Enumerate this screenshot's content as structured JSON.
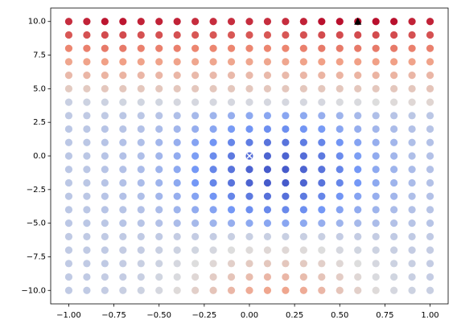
{
  "chart_data": {
    "type": "scatter-grid",
    "colormap": "coolwarm",
    "clim": [
      0,
      100
    ],
    "x": [
      -1,
      -0.9,
      -0.8,
      -0.7,
      -0.6,
      -0.5,
      -0.4,
      -0.3,
      -0.2,
      -0.1,
      0,
      0.1,
      0.2,
      0.3,
      0.4,
      0.5,
      0.6,
      0.7,
      0.8,
      0.9,
      1
    ],
    "y": [
      10,
      9,
      8,
      7,
      6,
      5,
      4,
      3,
      2,
      1,
      0,
      -1,
      -2,
      -3,
      -4,
      -5,
      -6,
      -7,
      -8,
      -9,
      -10
    ],
    "c": [
      [
        93,
        95,
        97,
        97,
        95,
        95,
        95,
        93,
        93,
        93,
        93,
        93,
        93,
        95,
        98,
        98,
        98,
        98,
        98,
        95,
        95
      ],
      [
        86,
        87,
        88,
        88,
        87,
        87,
        87,
        86,
        86,
        86,
        86,
        86,
        86,
        87,
        88,
        88,
        88,
        88,
        88,
        87,
        87
      ],
      [
        78,
        79,
        80,
        80,
        79,
        79,
        79,
        78,
        78,
        78,
        78,
        78,
        78,
        79,
        80,
        80,
        80,
        80,
        80,
        79,
        79
      ],
      [
        70,
        71,
        72,
        72,
        71,
        71,
        71,
        70,
        70,
        70,
        70,
        70,
        70,
        71,
        72,
        72,
        72,
        72,
        72,
        71,
        71
      ],
      [
        63,
        64,
        65,
        65,
        64,
        64,
        64,
        63,
        63,
        63,
        63,
        63,
        63,
        64,
        65,
        65,
        65,
        65,
        65,
        64,
        64
      ],
      [
        57,
        57,
        58,
        58,
        58,
        58,
        58,
        58,
        58,
        58,
        58,
        58,
        58,
        58,
        58,
        58,
        58,
        58,
        58,
        58,
        59
      ],
      [
        45,
        46,
        46,
        47,
        47,
        47,
        48,
        48,
        48,
        48,
        48,
        48,
        48,
        48,
        48,
        49,
        49,
        50,
        51,
        52,
        53
      ],
      [
        43,
        43,
        43,
        42,
        42,
        41,
        39,
        37,
        35,
        33,
        31,
        30,
        30,
        31,
        33,
        35,
        37,
        39,
        41,
        42,
        42
      ],
      [
        42,
        42,
        41,
        41,
        40,
        38,
        36,
        33,
        30,
        26,
        24,
        22,
        22,
        24,
        26,
        30,
        33,
        36,
        38,
        40,
        41
      ],
      [
        42,
        42,
        41,
        40,
        39,
        36,
        33,
        29,
        24,
        19,
        16,
        13,
        13,
        16,
        19,
        24,
        29,
        33,
        36,
        39,
        40
      ],
      [
        42,
        42,
        41,
        40,
        39,
        36,
        32,
        27,
        21,
        15,
        11,
        8,
        8,
        11,
        15,
        21,
        27,
        32,
        36,
        39,
        40
      ],
      [
        42,
        42,
        41,
        40,
        38,
        35,
        31,
        25,
        19,
        13,
        8,
        5,
        5,
        8,
        13,
        19,
        25,
        31,
        35,
        38,
        40
      ],
      [
        42,
        42,
        41,
        40,
        38,
        35,
        31,
        25,
        19,
        13,
        8,
        5,
        5,
        8,
        13,
        19,
        25,
        31,
        35,
        38,
        40
      ],
      [
        42,
        42,
        41,
        40,
        39,
        36,
        33,
        29,
        24,
        19,
        15,
        12,
        12,
        15,
        19,
        24,
        29,
        33,
        36,
        39,
        40
      ],
      [
        42,
        42,
        41,
        41,
        40,
        38,
        35,
        32,
        29,
        25,
        22,
        20,
        20,
        22,
        25,
        29,
        32,
        35,
        38,
        40,
        41
      ],
      [
        42,
        42,
        42,
        41,
        41,
        40,
        38,
        37,
        35,
        33,
        31,
        30,
        30,
        31,
        33,
        35,
        37,
        38,
        40,
        41,
        41
      ],
      [
        43,
        43,
        43,
        43,
        43,
        43,
        44,
        44,
        44,
        45,
        45,
        45,
        45,
        45,
        45,
        44,
        44,
        44,
        43,
        43,
        43
      ],
      [
        43,
        43,
        43,
        44,
        44,
        45,
        46,
        47,
        48,
        50,
        51,
        52,
        52,
        51,
        50,
        48,
        47,
        46,
        45,
        44,
        44
      ],
      [
        43,
        43,
        43,
        44,
        45,
        46,
        48,
        50,
        52,
        55,
        57,
        58,
        58,
        57,
        55,
        52,
        50,
        48,
        46,
        45,
        44
      ],
      [
        43,
        43,
        44,
        44,
        45,
        47,
        49,
        52,
        56,
        59,
        62,
        64,
        64,
        62,
        59,
        56,
        52,
        49,
        47,
        45,
        44
      ],
      [
        43,
        43,
        44,
        45,
        46,
        48,
        51,
        55,
        59,
        64,
        68,
        70,
        70,
        68,
        64,
        59,
        55,
        51,
        48,
        46,
        45
      ]
    ],
    "markers": [
      {
        "x": 0,
        "y": 0,
        "marker": "x",
        "color": "#ffffff"
      },
      {
        "x": 0.6,
        "y": 10,
        "marker": "^",
        "color": "#000000"
      }
    ],
    "xlim": [
      -1.1,
      1.1
    ],
    "ylim": [
      -11,
      11
    ],
    "xticks": [
      {
        "value": -1,
        "label": "−1.00"
      },
      {
        "value": -0.75,
        "label": "−0.75"
      },
      {
        "value": -0.5,
        "label": "−0.50"
      },
      {
        "value": -0.25,
        "label": "−0.25"
      },
      {
        "value": 0,
        "label": "0.00"
      },
      {
        "value": 0.25,
        "label": "0.25"
      },
      {
        "value": 0.5,
        "label": "0.50"
      },
      {
        "value": 0.75,
        "label": "0.75"
      },
      {
        "value": 1,
        "label": "1.00"
      }
    ],
    "yticks": [
      {
        "value": -10,
        "label": "−10.0"
      },
      {
        "value": -7.5,
        "label": "−7.5"
      },
      {
        "value": -5,
        "label": "−5.0"
      },
      {
        "value": -2.5,
        "label": "−2.5"
      },
      {
        "value": 0,
        "label": "0.0"
      },
      {
        "value": 2.5,
        "label": "2.5"
      },
      {
        "value": 5,
        "label": "5.0"
      },
      {
        "value": 7.5,
        "label": "7.5"
      },
      {
        "value": 10,
        "label": "10.0"
      }
    ]
  }
}
